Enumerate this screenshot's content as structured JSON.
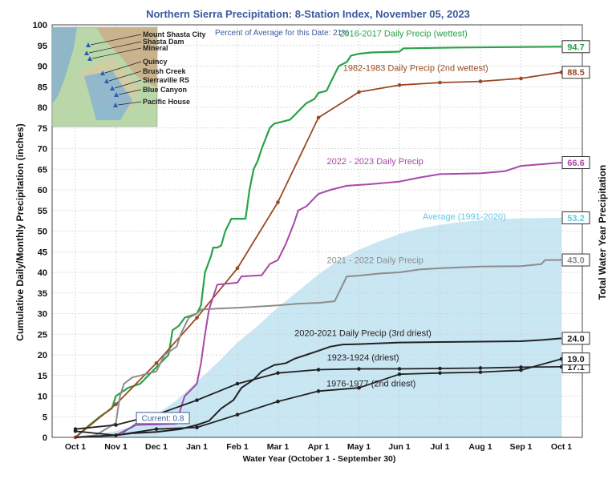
{
  "chart_data": {
    "type": "line",
    "title": "Northern Sierra Precipitation: 8-Station Index, November 05, 2023",
    "subtitle": "Percent of Average for this Date: 21%",
    "xlabel": "Water Year (October 1 - September 30)",
    "ylabel": "Cumulative Daily/Monthly Precipitation (inches)",
    "ylabel_right": "Total Water Year Precipitation",
    "ylim": [
      0,
      100
    ],
    "y_ticks": [
      "0",
      "5",
      "10",
      "15",
      "20",
      "25",
      "30",
      "35",
      "40",
      "45",
      "50",
      "55",
      "60",
      "65",
      "70",
      "75",
      "80",
      "85",
      "90",
      "95",
      "100"
    ],
    "x_ticks": [
      "Oct 1",
      "Nov 1",
      "Dec 1",
      "Jan 1",
      "Feb 1",
      "Mar 1",
      "Apr 1",
      "May 1",
      "Jun 1",
      "Jul 1",
      "Aug 1",
      "Sep 1",
      "Oct 1"
    ],
    "grid": true,
    "current_label": "Current: 0.8",
    "map_stations": [
      "Mount Shasta City",
      "Shasta Dam",
      "Mineral",
      "Quincy",
      "Brush Creek",
      "Sierraville RS",
      "Blue Canyon",
      "Pacific House"
    ],
    "average": {
      "name": "Average (1991-2020)",
      "total": "53.2",
      "color": "#c9e6f3",
      "label_color": "#5ec8e6",
      "points": [
        [
          0,
          0
        ],
        [
          1,
          1.5
        ],
        [
          1.5,
          3
        ],
        [
          2,
          5.5
        ],
        [
          2.5,
          9
        ],
        [
          3,
          13.5
        ],
        [
          3.5,
          18
        ],
        [
          4,
          23
        ],
        [
          4.5,
          27
        ],
        [
          5,
          31.5
        ],
        [
          5.5,
          35.5
        ],
        [
          6,
          39.5
        ],
        [
          6.5,
          43
        ],
        [
          7,
          45.5
        ],
        [
          7.5,
          47.5
        ],
        [
          8,
          49.3
        ],
        [
          8.5,
          50.6
        ],
        [
          9,
          51.5
        ],
        [
          9.5,
          52.2
        ],
        [
          10,
          52.6
        ],
        [
          10.5,
          52.9
        ],
        [
          11,
          53.1
        ],
        [
          12,
          53.2
        ]
      ]
    },
    "series": [
      {
        "name": "2016-2017 Daily Precip (wettest)",
        "total": "94.7",
        "color": "#2aa24a",
        "width": 2.2,
        "markers": false,
        "points": [
          [
            0,
            0
          ],
          [
            0.35,
            3
          ],
          [
            0.6,
            5
          ],
          [
            0.9,
            7
          ],
          [
            1.0,
            10
          ],
          [
            1.3,
            12
          ],
          [
            1.6,
            13
          ],
          [
            1.8,
            15
          ],
          [
            2.0,
            17
          ],
          [
            2.3,
            20
          ],
          [
            2.4,
            26
          ],
          [
            2.55,
            27
          ],
          [
            2.7,
            29
          ],
          [
            3.0,
            30
          ],
          [
            3.1,
            32
          ],
          [
            3.2,
            40
          ],
          [
            3.35,
            44
          ],
          [
            3.4,
            46
          ],
          [
            3.5,
            46
          ],
          [
            3.6,
            46.5
          ],
          [
            3.7,
            50
          ],
          [
            3.85,
            53
          ],
          [
            4.2,
            53
          ],
          [
            4.3,
            60
          ],
          [
            4.4,
            65
          ],
          [
            4.5,
            67
          ],
          [
            4.6,
            70
          ],
          [
            4.8,
            75
          ],
          [
            4.9,
            76
          ],
          [
            5.3,
            77
          ],
          [
            5.4,
            78
          ],
          [
            5.5,
            79
          ],
          [
            5.6,
            80
          ],
          [
            5.7,
            81
          ],
          [
            5.9,
            82
          ],
          [
            6.0,
            83.5
          ],
          [
            6.2,
            84
          ],
          [
            6.3,
            86
          ],
          [
            6.4,
            88
          ],
          [
            6.5,
            90
          ],
          [
            6.7,
            91
          ],
          [
            6.8,
            92.5
          ],
          [
            7.0,
            93
          ],
          [
            7.3,
            93.3
          ],
          [
            8.0,
            93.5
          ],
          [
            8.1,
            94.3
          ],
          [
            9.5,
            94.5
          ],
          [
            12,
            94.7
          ]
        ]
      },
      {
        "name": "1982-1983 Daily Precip (2nd wettest)",
        "total": "88.5",
        "color": "#9a4a22",
        "width": 1.8,
        "markers": true,
        "points": [
          [
            0,
            0
          ],
          [
            1,
            8
          ],
          [
            2,
            18
          ],
          [
            3,
            29
          ],
          [
            4,
            41
          ],
          [
            5,
            57
          ],
          [
            6,
            77.5
          ],
          [
            7,
            83.7
          ],
          [
            8,
            85.4
          ],
          [
            9,
            86
          ],
          [
            10,
            86.3
          ],
          [
            11,
            87
          ],
          [
            12,
            88.5
          ]
        ]
      },
      {
        "name": "2022 - 2023 Daily Precip",
        "total": "66.6",
        "color": "#a848a8",
        "width": 2,
        "markers": false,
        "points": [
          [
            0,
            0
          ],
          [
            1.0,
            0.5
          ],
          [
            1.3,
            2
          ],
          [
            1.5,
            3
          ],
          [
            2.5,
            3.3
          ],
          [
            2.6,
            7
          ],
          [
            2.7,
            10
          ],
          [
            2.8,
            11
          ],
          [
            3.0,
            13
          ],
          [
            3.1,
            18
          ],
          [
            3.2,
            25
          ],
          [
            3.3,
            31
          ],
          [
            3.5,
            37
          ],
          [
            4.0,
            37.5
          ],
          [
            4.1,
            39
          ],
          [
            4.6,
            39.3
          ],
          [
            4.8,
            42
          ],
          [
            5.0,
            43
          ],
          [
            5.2,
            47
          ],
          [
            5.4,
            52
          ],
          [
            5.5,
            55
          ],
          [
            5.7,
            56
          ],
          [
            5.9,
            58
          ],
          [
            6.0,
            59
          ],
          [
            6.3,
            60
          ],
          [
            6.7,
            61
          ],
          [
            7.2,
            61.3
          ],
          [
            8.0,
            62
          ],
          [
            8.5,
            63
          ],
          [
            9.0,
            63.8
          ],
          [
            10.0,
            64
          ],
          [
            10.6,
            64.5
          ],
          [
            11.0,
            65.8
          ],
          [
            12,
            66.6
          ]
        ]
      },
      {
        "name": "2021 - 2022 Daily Precip",
        "total": "43.0",
        "color": "#8c8c8c",
        "width": 2,
        "markers": false,
        "points": [
          [
            0,
            0
          ],
          [
            0.5,
            0.5
          ],
          [
            1.0,
            3.5
          ],
          [
            1.1,
            10
          ],
          [
            1.2,
            13
          ],
          [
            1.4,
            14.5
          ],
          [
            1.6,
            15
          ],
          [
            2.0,
            16
          ],
          [
            2.2,
            20
          ],
          [
            2.5,
            22
          ],
          [
            2.6,
            25
          ],
          [
            2.7,
            27
          ],
          [
            2.8,
            29
          ],
          [
            3.0,
            30
          ],
          [
            3.1,
            31
          ],
          [
            3.5,
            31.2
          ],
          [
            4.0,
            31.4
          ],
          [
            5.0,
            32
          ],
          [
            5.5,
            32.4
          ],
          [
            6.0,
            32.6
          ],
          [
            6.4,
            33
          ],
          [
            6.55,
            36
          ],
          [
            6.7,
            39
          ],
          [
            7.0,
            39.2
          ],
          [
            7.5,
            39.7
          ],
          [
            8.0,
            40
          ],
          [
            8.5,
            40.7
          ],
          [
            9.0,
            41
          ],
          [
            10.0,
            41.4
          ],
          [
            11.0,
            41.5
          ],
          [
            11.5,
            42
          ],
          [
            11.6,
            43
          ],
          [
            12,
            43
          ]
        ]
      },
      {
        "name": "2020-2021 Daily Precip (3rd driest)",
        "total": "24.0",
        "color": "#222222",
        "width": 2,
        "markers": false,
        "points": [
          [
            0,
            0
          ],
          [
            1.0,
            0.5
          ],
          [
            1.4,
            1
          ],
          [
            2.0,
            1.3
          ],
          [
            2.6,
            2
          ],
          [
            3.0,
            3
          ],
          [
            3.3,
            4
          ],
          [
            3.6,
            7
          ],
          [
            3.9,
            9
          ],
          [
            4.1,
            12
          ],
          [
            4.4,
            14
          ],
          [
            4.6,
            16
          ],
          [
            4.9,
            17.5
          ],
          [
            5.2,
            18
          ],
          [
            5.4,
            19
          ],
          [
            5.7,
            20
          ],
          [
            6.0,
            21
          ],
          [
            6.3,
            22
          ],
          [
            6.6,
            22.5
          ],
          [
            7.0,
            22.6
          ],
          [
            8.0,
            23
          ],
          [
            9.0,
            23.1
          ],
          [
            10.0,
            23.2
          ],
          [
            11.0,
            23.3
          ],
          [
            11.5,
            23.6
          ],
          [
            12,
            24
          ]
        ]
      },
      {
        "name": "1923-1924 (driest)",
        "total": "17.1",
        "color": "#222222",
        "width": 1.8,
        "markers": true,
        "points": [
          [
            0,
            2
          ],
          [
            1,
            3
          ],
          [
            2,
            5.5
          ],
          [
            3,
            9
          ],
          [
            4,
            13
          ],
          [
            5,
            15.6
          ],
          [
            6,
            16.4
          ],
          [
            7,
            16.6
          ],
          [
            8,
            16.6
          ],
          [
            9,
            16.7
          ],
          [
            10,
            16.8
          ],
          [
            11,
            17.0
          ],
          [
            12,
            17.1
          ]
        ]
      },
      {
        "name": "1976-1977 (2nd driest)",
        "total": "19.0",
        "color": "#222222",
        "width": 1.8,
        "markers": true,
        "points": [
          [
            0,
            1.5
          ],
          [
            1,
            0.5
          ],
          [
            2,
            2
          ],
          [
            3,
            2.4
          ],
          [
            4,
            5.5
          ],
          [
            5,
            8.7
          ],
          [
            6,
            11.2
          ],
          [
            7,
            12
          ],
          [
            8,
            15.3
          ],
          [
            9,
            15.6
          ],
          [
            10,
            15.8
          ],
          [
            11,
            16.3
          ],
          [
            12,
            19.0
          ]
        ]
      }
    ]
  }
}
